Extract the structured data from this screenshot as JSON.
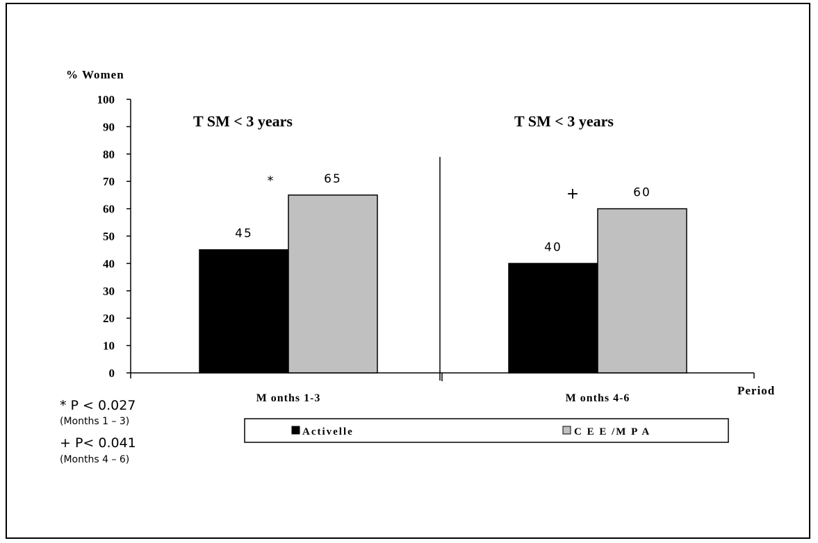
{
  "chart_data": {
    "type": "bar",
    "ylabel": "% Women",
    "xlabel": "Period",
    "ylim": [
      0,
      100
    ],
    "yticks": [
      0,
      10,
      20,
      30,
      40,
      50,
      60,
      70,
      80,
      90,
      100
    ],
    "categories": [
      "M onths 1-3",
      "M onths 4-6"
    ],
    "panel_titles": [
      "T SM  < 3 years",
      "T SM  < 3 years"
    ],
    "series": [
      {
        "name": "Activelle",
        "color": "#000000",
        "values": [
          45,
          40
        ],
        "labels": [
          "45",
          "40"
        ]
      },
      {
        "name": "C E E /M P A",
        "color": "#c0c0c0",
        "values": [
          65,
          60
        ],
        "labels": [
          "65",
          "60"
        ]
      }
    ],
    "significance_markers": [
      "*",
      "+"
    ],
    "footnotes": [
      {
        "symbol": "*",
        "text": "P < 0.027",
        "detail": "(Months 1 – 3)"
      },
      {
        "symbol": "+",
        "text": "P< 0.041",
        "detail": "(Months 4 – 6)"
      }
    ],
    "legend_position": "bottom"
  }
}
